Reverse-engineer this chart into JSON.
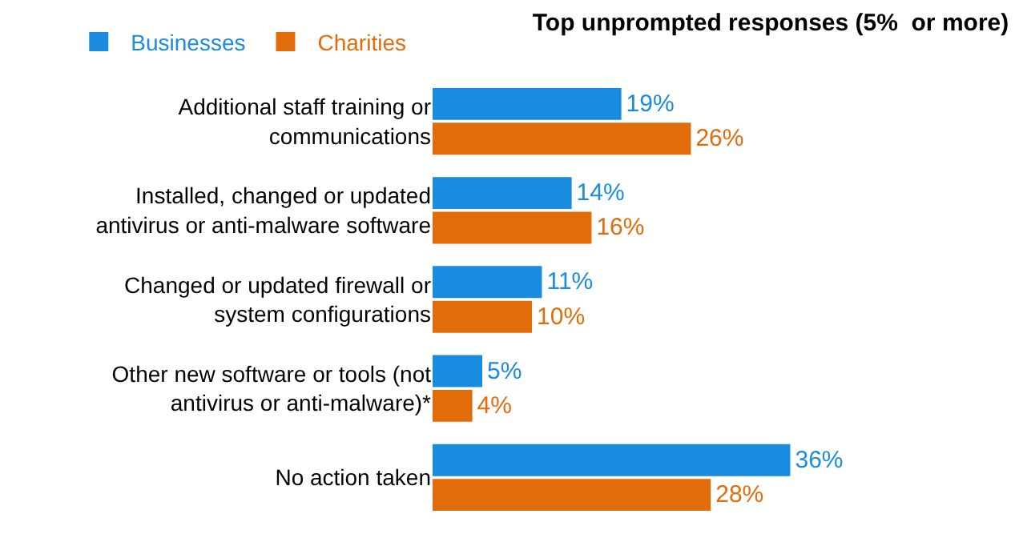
{
  "chart_data": {
    "type": "bar",
    "orientation": "horizontal",
    "title": "Top unprompted responses (5%  or more)",
    "categories": [
      "Additional staff training or communications",
      "Installed, changed or updated antivirus or anti-malware software",
      "Changed or updated firewall or system configurations",
      "Other new software or tools (not antivirus or anti-malware)*",
      "No action taken"
    ],
    "series": [
      {
        "name": "Businesses",
        "color": "#1a8ce0",
        "values": [
          19,
          14,
          11,
          5,
          36
        ],
        "value_labels": [
          "19%",
          "14%",
          "11%",
          "5%",
          "36%"
        ]
      },
      {
        "name": "Charities",
        "color": "#e36c0a",
        "values": [
          26,
          16,
          10,
          4,
          28
        ],
        "value_labels": [
          "26%",
          "16%",
          "10%",
          "4%",
          "28%"
        ]
      }
    ],
    "legend": "top left"
  }
}
